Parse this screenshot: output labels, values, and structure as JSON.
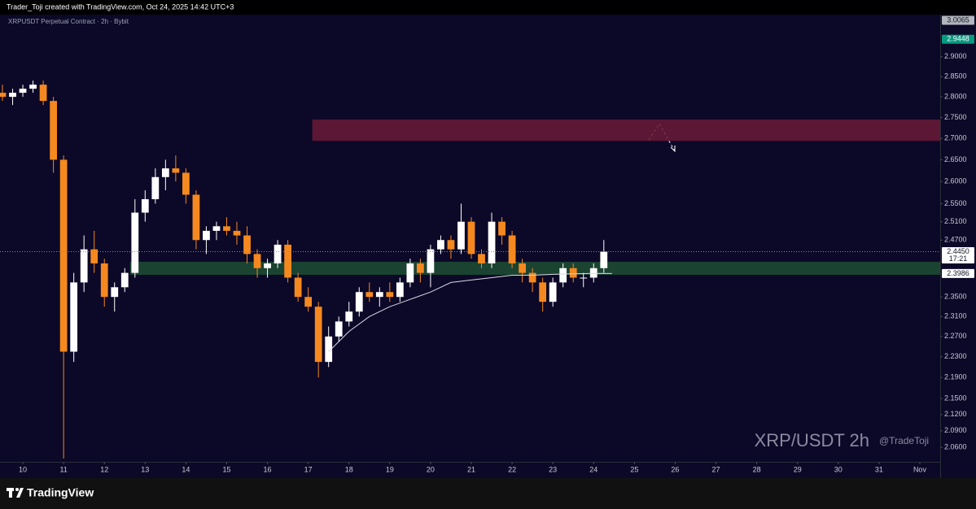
{
  "header": {
    "text": "Trader_Toji created with TradingView.com, Oct 24, 2025 14:42 UTC+3"
  },
  "footer": {
    "logo": "TradingView"
  },
  "chart_data": {
    "type": "candlestick",
    "title": "XRPUSDT Perpetual Contract · 2h · Bybit",
    "watermark": "XRP/USDT 2h",
    "author": "@TradeToji",
    "log_scale": true,
    "grid": false,
    "up_color": "#ffffff",
    "down_color": "#f5891f",
    "x": [
      9.5,
      9.75,
      10,
      10.25,
      10.5,
      10.75,
      11,
      11.25,
      11.5,
      11.75,
      12,
      12.25,
      12.5,
      12.75,
      13,
      13.25,
      13.5,
      13.75,
      14,
      14.25,
      14.5,
      14.75,
      15,
      15.25,
      15.5,
      15.75,
      16,
      16.25,
      16.5,
      16.75,
      17,
      17.25,
      17.5,
      17.75,
      18,
      18.25,
      18.5,
      18.75,
      19,
      19.25,
      19.5,
      19.75,
      20,
      20.25,
      20.5,
      20.75,
      21,
      21.25,
      21.5,
      21.75,
      22,
      22.25,
      22.5,
      22.75,
      23,
      23.25,
      23.5,
      23.75,
      24,
      24.25
    ],
    "open": [
      2.81,
      2.8,
      2.81,
      2.82,
      2.83,
      2.79,
      2.65,
      2.24,
      2.38,
      2.45,
      2.42,
      2.35,
      2.37,
      2.4,
      2.53,
      2.56,
      2.61,
      2.63,
      2.62,
      2.57,
      2.47,
      2.49,
      2.5,
      2.49,
      2.48,
      2.44,
      2.41,
      2.42,
      2.46,
      2.39,
      2.35,
      2.33,
      2.22,
      2.27,
      2.3,
      2.32,
      2.36,
      2.35,
      2.36,
      2.35,
      2.38,
      2.42,
      2.4,
      2.45,
      2.47,
      2.45,
      2.51,
      2.44,
      2.42,
      2.51,
      2.48,
      2.42,
      2.4,
      2.38,
      2.34,
      2.38,
      2.41,
      2.39,
      2.39,
      2.41
    ],
    "high": [
      2.83,
      2.82,
      2.83,
      2.84,
      2.84,
      2.8,
      2.66,
      2.4,
      2.48,
      2.49,
      2.43,
      2.38,
      2.41,
      2.56,
      2.58,
      2.63,
      2.65,
      2.66,
      2.63,
      2.58,
      2.5,
      2.51,
      2.52,
      2.51,
      2.5,
      2.45,
      2.43,
      2.47,
      2.47,
      2.4,
      2.37,
      2.34,
      2.29,
      2.31,
      2.34,
      2.37,
      2.38,
      2.37,
      2.38,
      2.39,
      2.43,
      2.43,
      2.46,
      2.48,
      2.48,
      2.55,
      2.52,
      2.45,
      2.53,
      2.52,
      2.49,
      2.43,
      2.41,
      2.39,
      2.39,
      2.42,
      2.42,
      2.4,
      2.42,
      2.47
    ],
    "low": [
      2.79,
      2.78,
      2.8,
      2.81,
      2.78,
      2.62,
      2.04,
      2.22,
      2.36,
      2.4,
      2.33,
      2.32,
      2.36,
      2.39,
      2.51,
      2.55,
      2.58,
      2.6,
      2.55,
      2.45,
      2.44,
      2.47,
      2.48,
      2.46,
      2.42,
      2.39,
      2.39,
      2.41,
      2.38,
      2.34,
      2.32,
      2.19,
      2.21,
      2.26,
      2.29,
      2.31,
      2.34,
      2.33,
      2.34,
      2.34,
      2.37,
      2.38,
      2.37,
      2.44,
      2.43,
      2.44,
      2.43,
      2.41,
      2.41,
      2.46,
      2.41,
      2.38,
      2.36,
      2.32,
      2.33,
      2.37,
      2.38,
      2.37,
      2.38,
      2.4
    ],
    "close": [
      2.8,
      2.81,
      2.82,
      2.83,
      2.79,
      2.65,
      2.24,
      2.38,
      2.45,
      2.42,
      2.35,
      2.37,
      2.4,
      2.53,
      2.56,
      2.61,
      2.63,
      2.62,
      2.57,
      2.47,
      2.49,
      2.5,
      2.49,
      2.48,
      2.44,
      2.41,
      2.42,
      2.46,
      2.39,
      2.35,
      2.33,
      2.22,
      2.27,
      2.3,
      2.32,
      2.36,
      2.35,
      2.36,
      2.35,
      2.38,
      2.42,
      2.4,
      2.45,
      2.47,
      2.45,
      2.51,
      2.44,
      2.42,
      2.51,
      2.48,
      2.42,
      2.4,
      2.38,
      2.34,
      2.38,
      2.41,
      2.39,
      2.39,
      2.41,
      2.445
    ],
    "line": {
      "color": "#d9d9e3",
      "x": [
        17.5,
        18,
        18.5,
        19,
        19.5,
        20,
        20.5,
        21,
        21.5,
        22,
        22.5,
        23,
        23.5,
        24,
        24.45
      ],
      "values": [
        2.24,
        2.28,
        2.31,
        2.33,
        2.345,
        2.36,
        2.38,
        2.385,
        2.39,
        2.395,
        2.395,
        2.397,
        2.398,
        2.399,
        2.3986
      ]
    },
    "zones": [
      {
        "from": 17.1,
        "low": 2.694,
        "high": 2.745,
        "color": "#6a1a35"
      },
      {
        "from": 12.63,
        "low": 2.396,
        "high": 2.4235,
        "color": "#1e4d33"
      }
    ],
    "price_markers": [
      {
        "value": 3.0065,
        "label": "3.0065",
        "color": "#b2b5be",
        "text_color": "#131722"
      },
      {
        "value": 2.9448,
        "label": "2.9448",
        "color": "#089981",
        "text_color": "#ffffff"
      },
      {
        "value": 2.445,
        "label": "2.4450",
        "color": "#ffffff",
        "text_color": "#131722",
        "countdown": "17:21"
      },
      {
        "value": 2.3986,
        "label": "2.3986",
        "color": "#ffffff",
        "text_color": "#131722"
      }
    ],
    "xlim": [
      9.44,
      32.5
    ],
    "xticks": [
      10,
      11,
      12,
      13,
      14,
      15,
      16,
      17,
      18,
      19,
      20,
      21,
      22,
      23,
      24,
      25,
      26,
      27,
      28,
      29,
      30,
      31,
      {
        "value": 32,
        "label": "Nov"
      }
    ],
    "ylim": [
      2.034,
      3.009
    ],
    "yticks": [
      {
        "value": 2.06,
        "label": "2.0600"
      },
      {
        "value": 2.09,
        "label": "2.0900"
      },
      {
        "value": 2.12,
        "label": "2.1200"
      },
      {
        "value": 2.15,
        "label": "2.1500"
      },
      {
        "value": 2.19,
        "label": "2.1900"
      },
      {
        "value": 2.23,
        "label": "2.2300"
      },
      {
        "value": 2.27,
        "label": "2.2700"
      },
      {
        "value": 2.31,
        "label": "2.3100"
      },
      {
        "value": 2.35,
        "label": "2.3500"
      },
      {
        "value": 2.47,
        "label": "2.4700"
      },
      {
        "value": 2.51,
        "label": "2.5100"
      },
      {
        "value": 2.55,
        "label": "2.5500"
      },
      {
        "value": 2.6,
        "label": "2.6000"
      },
      {
        "value": 2.65,
        "label": "2.6500"
      },
      {
        "value": 2.7,
        "label": "2.7000"
      },
      {
        "value": 2.75,
        "label": "2.7500"
      },
      {
        "value": 2.8,
        "label": "2.8000"
      },
      {
        "value": 2.85,
        "label": "2.8500"
      },
      {
        "value": 2.9,
        "label": "2.9000"
      }
    ]
  }
}
